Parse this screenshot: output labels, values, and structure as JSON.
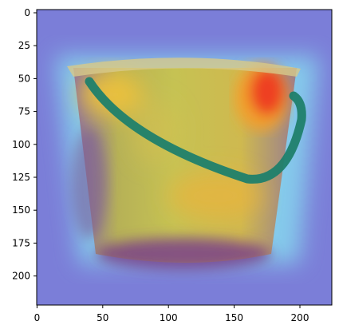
{
  "figure": {
    "x_ticks": [
      "0",
      "50",
      "100",
      "150",
      "200"
    ],
    "y_ticks": [
      "0",
      "25",
      "50",
      "75",
      "100",
      "125",
      "150",
      "175",
      "200"
    ],
    "x_range": [
      0,
      224
    ],
    "y_range": [
      0,
      224
    ],
    "image_subject": "bucket with heatmap overlay",
    "colors": {
      "heat_low": "#7070e8",
      "heat_mid": "#7ee0f0",
      "heat_high_yellow": "#f0c040",
      "heat_peak_red": "#f03020",
      "handle": "#1f7f6c",
      "bucket_dark": "#8a3d8a"
    }
  }
}
